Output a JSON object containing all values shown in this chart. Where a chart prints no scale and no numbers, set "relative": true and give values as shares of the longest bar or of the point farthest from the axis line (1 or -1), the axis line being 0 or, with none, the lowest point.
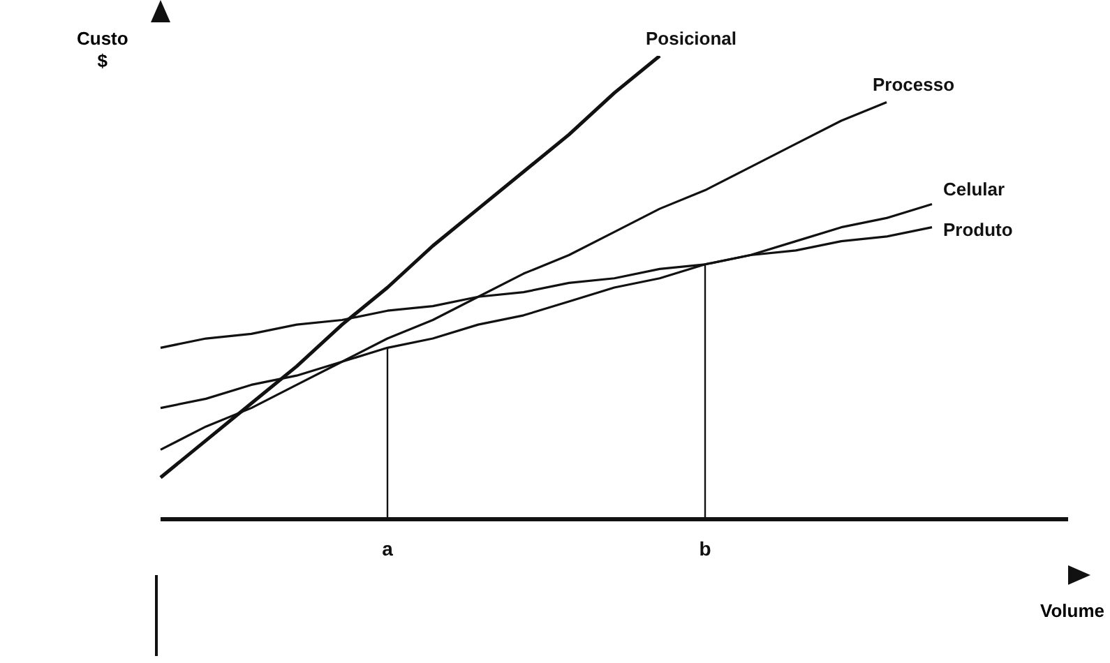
{
  "chart_data": {
    "type": "line",
    "relative": true,
    "xlabel": "Volume",
    "ylabel": "Custo\n$",
    "grid": false,
    "legend": false,
    "marker": "none",
    "line_style": "solid",
    "categories": [
      null,
      null,
      null,
      null,
      null,
      "a",
      null,
      null,
      null,
      null,
      null,
      null,
      "b",
      null,
      null,
      null,
      null,
      null,
      null,
      null,
      null
    ],
    "series": [
      {
        "name": "Posicional",
        "color": "#111111",
        "values": [
          0.09,
          0.17,
          0.25,
          0.33,
          0.42,
          0.5,
          0.59,
          0.67,
          0.75,
          0.83,
          0.92,
          1,
          null,
          null,
          null,
          null,
          null,
          null,
          null,
          null,
          null
        ]
      },
      {
        "name": "Processo",
        "color": "#111111",
        "values": [
          0.15,
          0.2,
          0.24,
          0.29,
          0.34,
          0.39,
          0.43,
          0.48,
          0.53,
          0.57,
          0.62,
          0.67,
          0.71,
          0.76,
          0.81,
          0.86,
          0.9,
          null,
          null,
          null,
          null
        ]
      },
      {
        "name": "Celular",
        "color": "#111111",
        "values": [
          0.24,
          0.26,
          0.29,
          0.31,
          0.34,
          0.37,
          0.39,
          0.42,
          0.44,
          0.47,
          0.5,
          0.52,
          0.55,
          0.57,
          0.6,
          0.63,
          0.65,
          0.68,
          null,
          null,
          null
        ]
      },
      {
        "name": "Produto",
        "color": "#111111",
        "values": [
          0.37,
          0.39,
          0.4,
          0.42,
          0.43,
          0.45,
          0.46,
          0.48,
          0.49,
          0.51,
          0.52,
          0.54,
          0.55,
          0.57,
          0.58,
          0.6,
          0.61,
          0.63,
          null,
          null,
          null
        ]
      }
    ],
    "ref_lines": [
      {
        "axis": "x",
        "value": "a",
        "color": "#111111"
      },
      {
        "axis": "x",
        "value": "b",
        "color": "#111111"
      }
    ]
  }
}
